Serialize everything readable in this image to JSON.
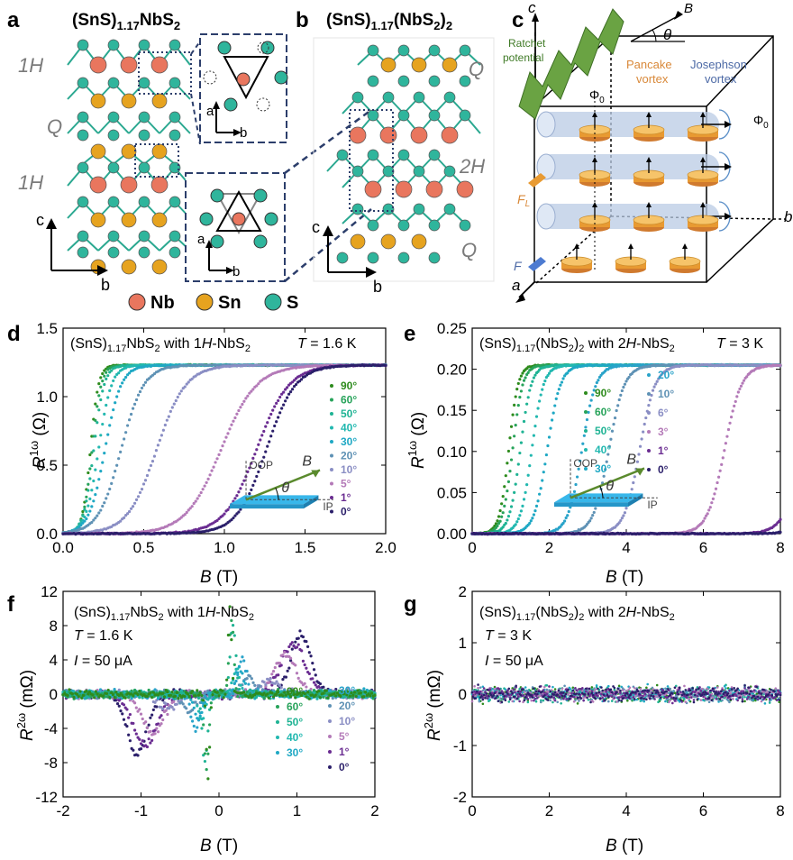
{
  "panels": {
    "a": {
      "letter": "a",
      "formula": "(SnS)",
      "sub": "1.17",
      "tail": "NbS",
      "sub2": "2",
      "layers": [
        "1H",
        "Q",
        "1H"
      ],
      "axes": [
        "c",
        "b",
        "a",
        "b",
        "a",
        "b"
      ]
    },
    "b": {
      "letter": "b",
      "formula": "(SnS)",
      "sub": "1.17",
      "tail": "(NbS",
      "sub2": "2",
      "tail2": ")",
      "sub3": "2",
      "layers": [
        "Q",
        "2H",
        "Q"
      ],
      "axes": [
        "c",
        "b"
      ]
    },
    "legend_atoms": [
      {
        "label": "Nb",
        "color": "#e9765e"
      },
      {
        "label": "Sn",
        "color": "#e6a31f"
      },
      {
        "label": "S",
        "color": "#2fb59c"
      }
    ],
    "c": {
      "letter": "c",
      "ratchet": "Ratchet",
      "ratchet2": "potential",
      "pancake": "Pancake",
      "pancake2": "vortex",
      "josephson": "Josephson",
      "josephson2": "vortex",
      "phi": "Φ",
      "phi_sub": "0",
      "axis_c": "c",
      "axis_b": "b",
      "axis_a": "a",
      "field": "B",
      "angle": "θ",
      "force_l": "F",
      "force_l_sub": "L",
      "force_j": "F"
    },
    "d": {
      "letter": "d"
    },
    "e": {
      "letter": "e"
    },
    "f": {
      "letter": "f"
    },
    "g": {
      "letter": "g"
    }
  },
  "inset": {
    "oop": "OOP",
    "ip": "IP",
    "field": "B",
    "angle": "θ"
  },
  "chart_data": [
    {
      "id": "d",
      "type": "scatter",
      "caption": "(SnS)1.17NbS2 with 1H-NbS2",
      "temperature": "T = 1.6 K",
      "xlabel": "B (T)",
      "ylabel": "R1ω (Ω)",
      "xlim": [
        0,
        2.0
      ],
      "ylim": [
        0,
        1.5
      ],
      "xticks": [
        "0.0",
        "0.5",
        "1.0",
        "1.5",
        "2.0"
      ],
      "yticks": [
        "0.0",
        "0.5",
        "1.0",
        "1.5"
      ],
      "saturation": 1.23,
      "series": [
        {
          "name": "90°",
          "color": "#2e8b1d",
          "mid": 0.17,
          "width": 0.025,
          "end": 0.26
        },
        {
          "name": "60°",
          "color": "#27a35a",
          "mid": 0.18,
          "width": 0.028,
          "end": 0.3
        },
        {
          "name": "50°",
          "color": "#1fb394",
          "mid": 0.19,
          "width": 0.032,
          "end": 0.36
        },
        {
          "name": "40°",
          "color": "#22b8b0",
          "mid": 0.22,
          "width": 0.04,
          "end": 0.45
        },
        {
          "name": "30°",
          "color": "#1fa8c4",
          "mid": 0.26,
          "width": 0.05,
          "end": 0.55
        },
        {
          "name": "20°",
          "color": "#5f92b5",
          "mid": 0.36,
          "width": 0.07,
          "end": 0.72
        },
        {
          "name": "10°",
          "color": "#8a8ec4",
          "mid": 0.58,
          "width": 0.09,
          "end": 1.0
        },
        {
          "name": "5°",
          "color": "#b47ab8",
          "mid": 0.98,
          "width": 0.11,
          "end": 1.45
        },
        {
          "name": "1°",
          "color": "#6a2c91",
          "mid": 1.2,
          "width": 0.1,
          "end": 1.62
        },
        {
          "name": "0°",
          "color": "#2b1f6a",
          "mid": 1.26,
          "width": 0.09,
          "end": 1.68
        }
      ]
    },
    {
      "id": "e",
      "type": "scatter",
      "caption": "(SnS)1.17(NbS2)2 with 2H-NbS2",
      "temperature": "T = 3 K",
      "xlabel": "B (T)",
      "ylabel": "R1ω (Ω)",
      "xlim": [
        0,
        8
      ],
      "ylim": [
        0,
        0.25
      ],
      "xticks": [
        "0",
        "2",
        "4",
        "6",
        "8"
      ],
      "yticks": [
        "0.00",
        "0.05",
        "0.10",
        "0.15",
        "0.20",
        "0.25"
      ],
      "saturation": 0.205,
      "series": [
        {
          "name": "90°",
          "color": "#2e8b1d",
          "mid": 0.95,
          "width": 0.12
        },
        {
          "name": "60°",
          "color": "#27a35a",
          "mid": 1.05,
          "width": 0.13
        },
        {
          "name": "50°",
          "color": "#1fb394",
          "mid": 1.25,
          "width": 0.14
        },
        {
          "name": "40°",
          "color": "#22b8b0",
          "mid": 1.55,
          "width": 0.15
        },
        {
          "name": "30°",
          "color": "#1fa8c4",
          "mid": 1.95,
          "width": 0.17
        },
        {
          "name": "20°",
          "color": "#29a3c9",
          "mid": 2.85,
          "width": 0.18
        },
        {
          "name": "10°",
          "color": "#5f92b5",
          "mid": 3.55,
          "width": 0.2
        },
        {
          "name": "6°",
          "color": "#8a8ec4",
          "mid": 4.35,
          "width": 0.2
        },
        {
          "name": "3°",
          "color": "#b47ab8",
          "mid": 6.55,
          "width": 0.22
        },
        {
          "name": "1°",
          "color": "#6a2c91",
          "mid": 8.6,
          "width": 0.25
        },
        {
          "name": "0°",
          "color": "#2b1f6a",
          "mid": 9.2,
          "width": 0.25
        }
      ]
    },
    {
      "id": "f",
      "type": "scatter",
      "caption": "(SnS)1.17NbS2 with 1H-NbS2",
      "temperature": "T = 1.6 K",
      "current": "I = 50 μA",
      "xlabel": "B (T)",
      "ylabel": "R2ω (mΩ)",
      "xlim": [
        -2,
        2
      ],
      "ylim": [
        -12,
        12
      ],
      "xticks": [
        "-2",
        "-1",
        "0",
        "1",
        "2"
      ],
      "yticks": [
        "-12",
        "-8",
        "-4",
        "0",
        "4",
        "8",
        "12"
      ],
      "series": [
        {
          "name": "90°",
          "color": "#2e8b1d",
          "pos": 0.14,
          "width": 0.03,
          "amp": 10.0
        },
        {
          "name": "60°",
          "color": "#27a35a",
          "pos": 0.16,
          "width": 0.04,
          "amp": 9.0
        },
        {
          "name": "50°",
          "color": "#1fb394",
          "pos": 0.18,
          "width": 0.05,
          "amp": 8.0
        },
        {
          "name": "40°",
          "color": "#22b8b0",
          "pos": 0.22,
          "width": 0.06,
          "amp": 3.0
        },
        {
          "name": "30°",
          "color": "#1fa8c4",
          "pos": 0.26,
          "width": 0.07,
          "amp": 3.0
        },
        {
          "name": "30°",
          "color": "#29a3c9",
          "pos": 0.3,
          "width": 0.08,
          "amp": 4.0
        },
        {
          "name": "20°",
          "color": "#5f92b5",
          "pos": 0.38,
          "width": 0.12,
          "amp": 2.0
        },
        {
          "name": "10°",
          "color": "#8a8ec4",
          "pos": 0.65,
          "width": 0.18,
          "amp": 1.5
        },
        {
          "name": "5°",
          "color": "#b47ab8",
          "pos": 0.85,
          "width": 0.2,
          "amp": 4.5
        },
        {
          "name": "1°",
          "color": "#6a2c91",
          "pos": 0.95,
          "width": 0.22,
          "amp": 6.0
        },
        {
          "name": "0°",
          "color": "#2b1f6a",
          "pos": 1.05,
          "width": 0.18,
          "amp": 7.0
        }
      ]
    },
    {
      "id": "g",
      "type": "scatter",
      "caption": "(SnS)1.17(NbS2)2 with 2H-NbS2",
      "temperature": "T = 3 K",
      "current": "I = 50 μA",
      "xlabel": "B (T)",
      "ylabel": "R2ω (mΩ)",
      "xlim": [
        0,
        8
      ],
      "ylim": [
        -2,
        2
      ],
      "xticks": [
        "0",
        "2",
        "4",
        "6",
        "8"
      ],
      "yticks": [
        "-2",
        "-1",
        "0",
        "1",
        "2"
      ],
      "noise": 0.12,
      "series": [
        {
          "color": "#2e8b1d"
        },
        {
          "color": "#1fb394"
        },
        {
          "color": "#1fa8c4"
        },
        {
          "color": "#5f92b5"
        },
        {
          "color": "#b47ab8"
        },
        {
          "color": "#6a2c91"
        },
        {
          "color": "#2b1f6a"
        }
      ]
    }
  ]
}
